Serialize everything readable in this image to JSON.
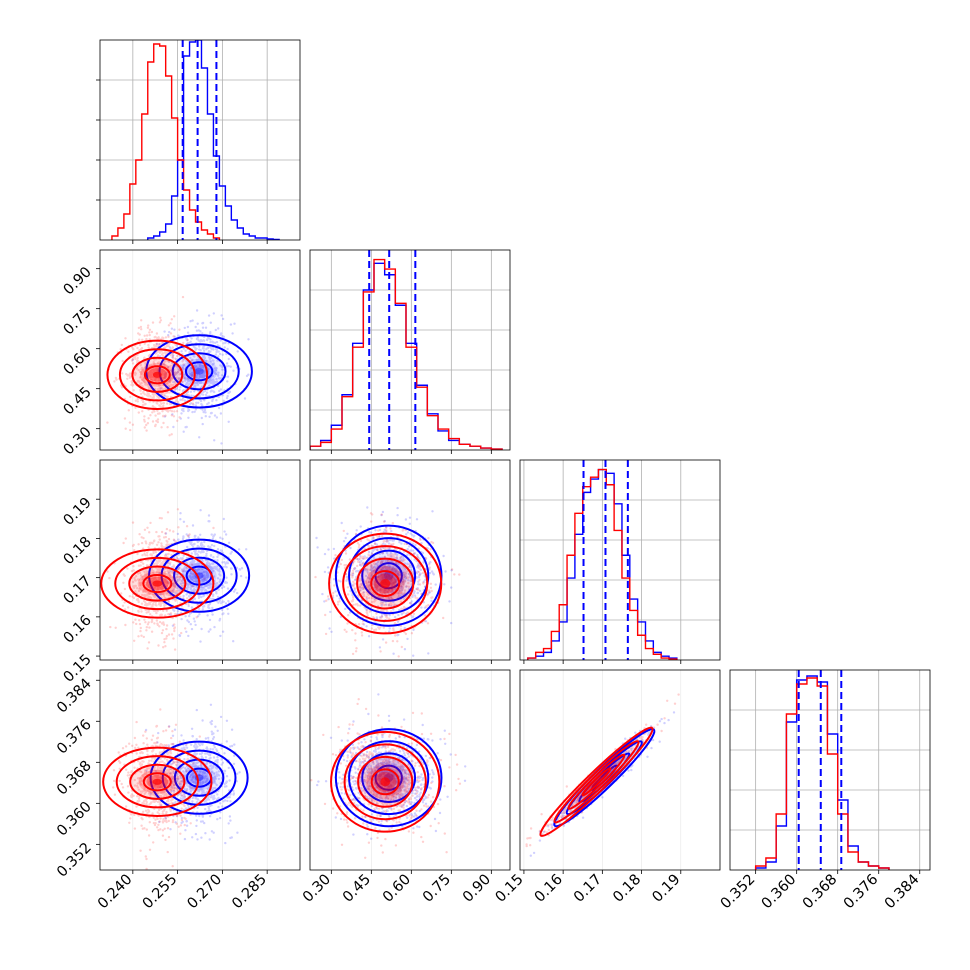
{
  "chart_data": {
    "type": "corner",
    "grid": true,
    "series": [
      {
        "name": "",
        "color": "#ff0000"
      },
      {
        "name": "",
        "color": "#0000ff"
      }
    ],
    "parameters": [
      {
        "range": [
          0.229,
          0.296
        ],
        "ticks": [
          0.24,
          0.255,
          0.27,
          0.285
        ],
        "tick_labels": [
          "0.240",
          "0.255",
          "0.270",
          "0.285"
        ],
        "ylim": [
          0,
          1.0
        ],
        "hist_red": {
          "bins": [
            0.234,
            0.236,
            0.238,
            0.24,
            0.242,
            0.244,
            0.246,
            0.248,
            0.25,
            0.252,
            0.254,
            0.256,
            0.258,
            0.26,
            0.262,
            0.264,
            0.266,
            0.268
          ],
          "counts": [
            0.02,
            0.06,
            0.13,
            0.28,
            0.4,
            0.63,
            0.89,
            0.98,
            0.97,
            0.82,
            0.61,
            0.4,
            0.25,
            0.15,
            0.09,
            0.05,
            0.03,
            0.01
          ]
        },
        "hist_blue": {
          "bins": [
            0.246,
            0.248,
            0.25,
            0.252,
            0.254,
            0.256,
            0.258,
            0.26,
            0.262,
            0.264,
            0.266,
            0.268,
            0.27,
            0.272,
            0.274,
            0.276,
            0.278,
            0.28,
            0.282,
            0.284,
            0.286,
            0.288
          ],
          "counts": [
            0.01,
            0.02,
            0.04,
            0.08,
            0.22,
            0.4,
            0.92,
            0.99,
            1.0,
            0.86,
            0.63,
            0.42,
            0.27,
            0.17,
            0.1,
            0.06,
            0.03,
            0.02,
            0.01,
            0.01,
            0.005,
            0.003
          ]
        },
        "quantiles_blue": [
          0.2567,
          0.2617,
          0.268
        ]
      },
      {
        "range": [
          0.22,
          0.97
        ],
        "ticks": [
          0.3,
          0.45,
          0.6,
          0.75,
          0.9
        ],
        "tick_labels": [
          "0.30",
          "0.45",
          "0.60",
          "0.75",
          "0.90"
        ],
        "ylim": [
          0,
          1.05
        ],
        "hist_red": {
          "bins": [
            0.24,
            0.28,
            0.32,
            0.36,
            0.4,
            0.44,
            0.48,
            0.52,
            0.56,
            0.6,
            0.64,
            0.68,
            0.72,
            0.76,
            0.8,
            0.84,
            0.88,
            0.92
          ],
          "counts": [
            0.02,
            0.04,
            0.11,
            0.28,
            0.54,
            0.83,
            1.0,
            0.95,
            0.77,
            0.54,
            0.33,
            0.18,
            0.11,
            0.06,
            0.03,
            0.02,
            0.01,
            0.005
          ]
        },
        "hist_blue": {
          "bins": [
            0.24,
            0.28,
            0.32,
            0.36,
            0.4,
            0.44,
            0.48,
            0.52,
            0.56,
            0.6,
            0.64,
            0.68,
            0.72,
            0.76,
            0.8,
            0.84,
            0.88,
            0.92
          ],
          "counts": [
            0.02,
            0.05,
            0.13,
            0.29,
            0.56,
            0.84,
            0.98,
            0.92,
            0.76,
            0.56,
            0.34,
            0.19,
            0.1,
            0.05,
            0.03,
            0.02,
            0.01,
            0.005
          ]
        },
        "quantiles_blue": [
          0.442,
          0.517,
          0.615
        ]
      },
      {
        "range": [
          0.149,
          0.2
        ],
        "ticks": [
          0.15,
          0.16,
          0.17,
          0.18,
          0.19
        ],
        "tick_labels": [
          "0.15",
          "0.16",
          "0.17",
          "0.18",
          "0.19"
        ],
        "ylim": [
          0,
          1.05
        ],
        "hist_red": {
          "bins": [
            0.152,
            0.154,
            0.156,
            0.158,
            0.16,
            0.162,
            0.164,
            0.166,
            0.168,
            0.17,
            0.172,
            0.174,
            0.176,
            0.178,
            0.18,
            0.182,
            0.184,
            0.186,
            0.188
          ],
          "counts": [
            0.01,
            0.04,
            0.06,
            0.15,
            0.29,
            0.55,
            0.77,
            0.91,
            0.96,
            1.0,
            0.92,
            0.68,
            0.43,
            0.26,
            0.13,
            0.06,
            0.03,
            0.01,
            0.005
          ]
        },
        "hist_blue": {
          "bins": [
            0.152,
            0.154,
            0.156,
            0.158,
            0.16,
            0.162,
            0.164,
            0.166,
            0.168,
            0.17,
            0.172,
            0.174,
            0.176,
            0.178,
            0.18,
            0.182,
            0.184,
            0.186,
            0.188
          ],
          "counts": [
            0.01,
            0.02,
            0.04,
            0.1,
            0.2,
            0.43,
            0.66,
            0.88,
            0.95,
            1.0,
            0.98,
            0.82,
            0.55,
            0.32,
            0.2,
            0.1,
            0.04,
            0.02,
            0.01
          ]
        },
        "quantiles_blue": [
          0.1652,
          0.1708,
          0.1765
        ]
      },
      {
        "range": [
          0.347,
          0.386
        ],
        "ticks": [
          0.352,
          0.36,
          0.368,
          0.376,
          0.384
        ],
        "tick_labels": [
          "0.352",
          "0.360",
          "0.368",
          "0.376",
          "0.384"
        ],
        "ylim": [
          0,
          1.0
        ],
        "hist_red": {
          "bins": [
            0.353,
            0.355,
            0.357,
            0.359,
            0.361,
            0.363,
            0.365,
            0.367,
            0.369,
            0.371,
            0.373,
            0.375,
            0.377
          ],
          "counts": [
            0.02,
            0.06,
            0.28,
            0.78,
            0.93,
            0.96,
            0.92,
            0.58,
            0.28,
            0.09,
            0.04,
            0.02,
            0.01
          ]
        },
        "hist_blue": {
          "bins": [
            0.353,
            0.355,
            0.357,
            0.359,
            0.361,
            0.363,
            0.365,
            0.367,
            0.369,
            0.371,
            0.373,
            0.375,
            0.377
          ],
          "counts": [
            0.01,
            0.04,
            0.22,
            0.74,
            0.95,
            0.97,
            0.94,
            0.68,
            0.35,
            0.12,
            0.04,
            0.02,
            0.01
          ]
        },
        "quantiles_blue": [
          0.3604,
          0.3647,
          0.3687
        ]
      }
    ],
    "joint": {
      "red": {
        "mean": [
          0.2482,
          0.502,
          0.1685,
          0.3642
        ],
        "sd": [
          0.0052,
          0.085,
          0.0065,
          0.0048
        ],
        "corr": {
          "2-3": 0.97,
          "1-2": 0.0,
          "0-1": 0.0,
          "0-2": 0.0,
          "0-3": 0.0,
          "1-3": 0.0
        }
      },
      "blue": {
        "mean": [
          0.2622,
          0.515,
          0.1705,
          0.365
        ],
        "sd": [
          0.0055,
          0.09,
          0.0058,
          0.0043
        ],
        "corr": {
          "2-3": 0.96,
          "1-2": 0.0,
          "0-1": 0.0,
          "0-2": 0.0,
          "0-3": 0.0,
          "1-3": 0.0
        }
      },
      "contour_levels_sigma": [
        0.5,
        1.0,
        1.5,
        2.0
      ]
    }
  }
}
